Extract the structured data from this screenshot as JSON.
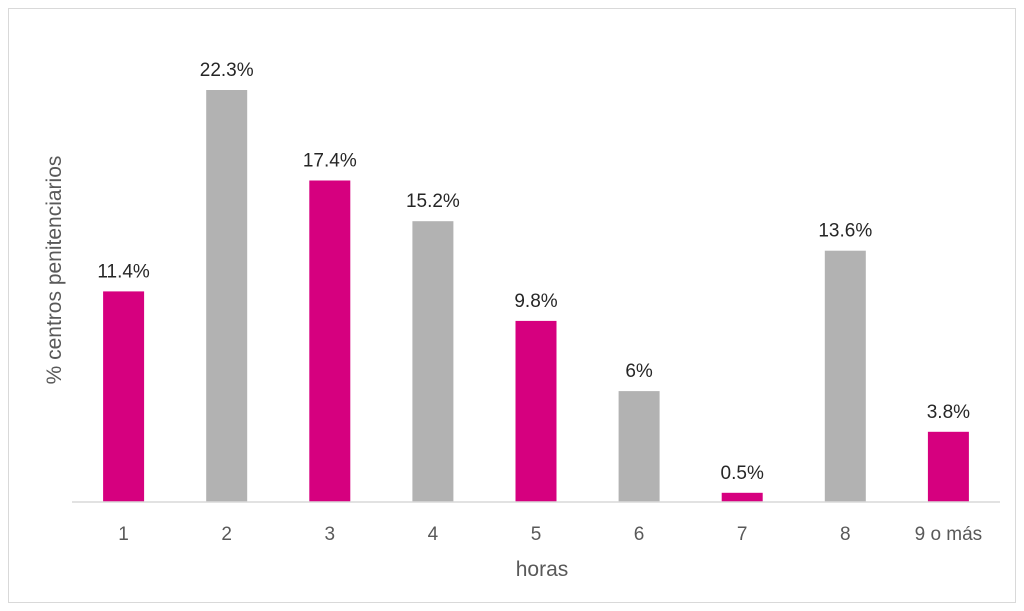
{
  "chart_data": {
    "type": "bar",
    "categories": [
      "1",
      "2",
      "3",
      "4",
      "5",
      "6",
      "7",
      "8",
      "9 o más"
    ],
    "values": [
      11.4,
      22.3,
      17.4,
      15.2,
      9.8,
      6,
      0.5,
      13.6,
      3.8
    ],
    "data_labels": [
      "11.4%",
      "22.3%",
      "17.4%",
      "15.2%",
      "9.8%",
      "6%",
      "0.5%",
      "13.6%",
      "3.8%"
    ],
    "colors": [
      "#d6007f",
      "#b2b2b2",
      "#d6007f",
      "#b2b2b2",
      "#d6007f",
      "#b2b2b2",
      "#d6007f",
      "#b2b2b2",
      "#d6007f"
    ],
    "xlabel": "horas",
    "ylabel": "% centros penitenciarios",
    "ylim": [
      0,
      22.3
    ],
    "grid": false,
    "legend": "none"
  }
}
